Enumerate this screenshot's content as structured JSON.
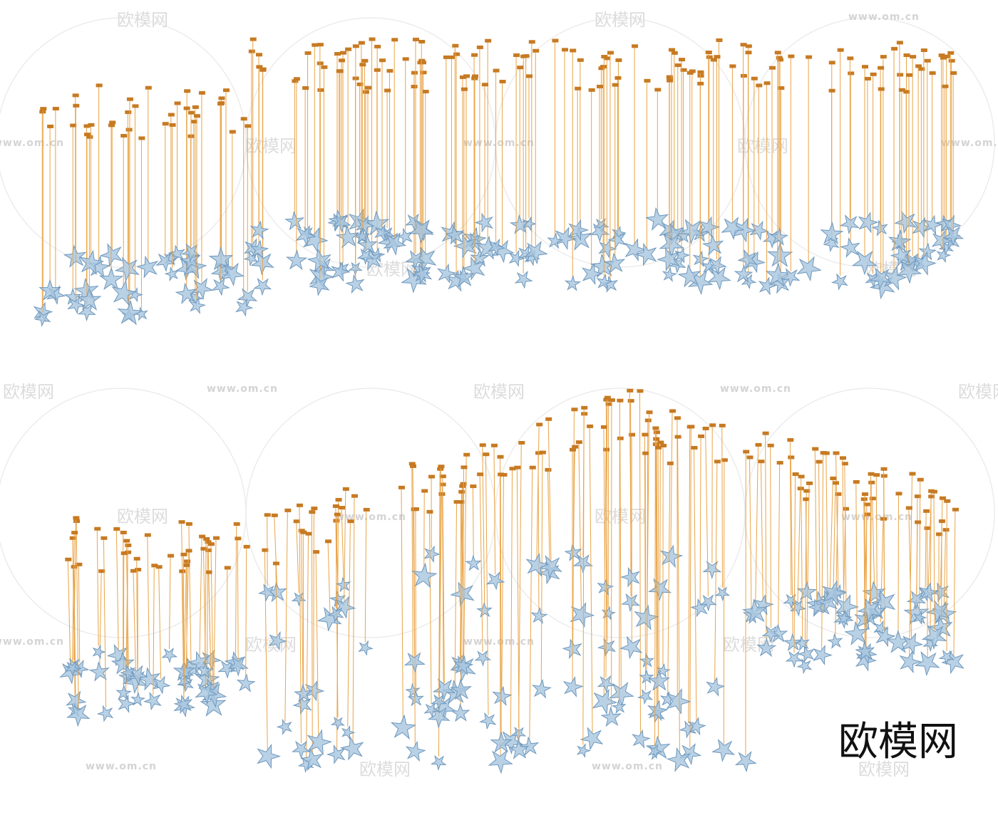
{
  "watermark": {
    "site": "www.om.cn",
    "brand": "欧模网"
  },
  "logo": "欧模网"
}
